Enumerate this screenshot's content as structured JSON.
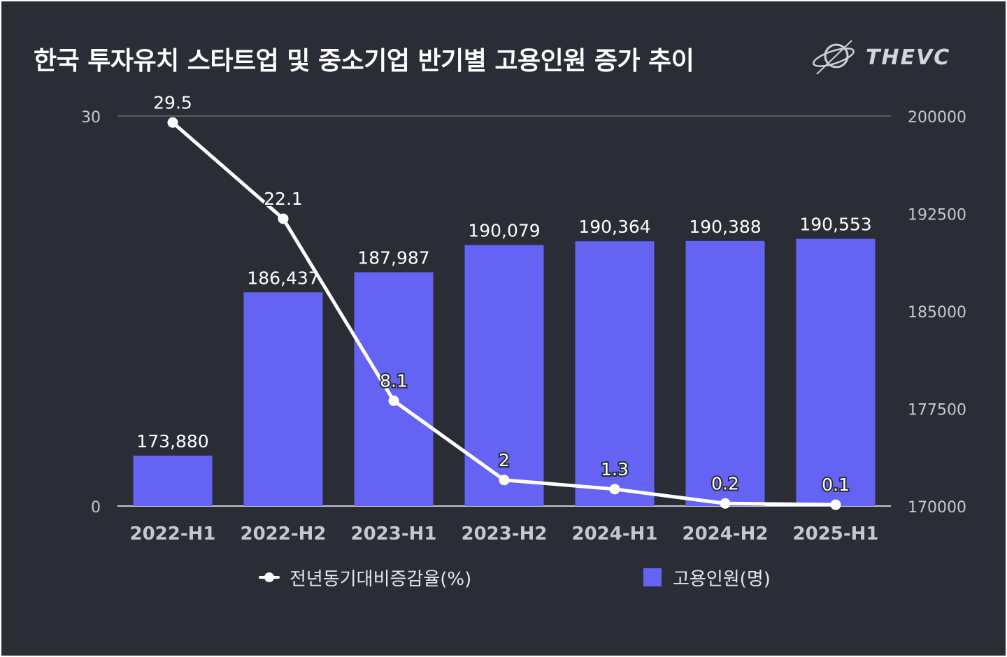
{
  "title": "한국 투자유치 스타트업 및 중소기업 반기별 고용인원 증가 추이",
  "logo": {
    "text": "THEVC",
    "icon": "orbit-logo-icon"
  },
  "colors": {
    "background": "#2a2d35",
    "bar": "#6563f4",
    "line": "#ffffff",
    "text": "#ffffff",
    "axis_text": "#c7c8cf",
    "grid": "#8a8c94"
  },
  "chart_data": {
    "type": "bar+line",
    "categories": [
      "2022-H1",
      "2022-H2",
      "2023-H1",
      "2023-H2",
      "2024-H1",
      "2024-H2",
      "2025-H1"
    ],
    "series": [
      {
        "name": "고용인원(명)",
        "type": "bar",
        "axis": "right",
        "values": [
          173880,
          186437,
          187987,
          190079,
          190364,
          190388,
          190553
        ],
        "labels": [
          "173,880",
          "186,437",
          "187,987",
          "190,079",
          "190,364",
          "190,388",
          "190,553"
        ]
      },
      {
        "name": "전년동기대비증감율(%)",
        "type": "line",
        "axis": "left",
        "values": [
          29.5,
          22.1,
          8.1,
          2,
          1.3,
          0.2,
          0.1
        ],
        "labels": [
          "29.5",
          "22.1",
          "8.1",
          "2",
          "1.3",
          "0.2",
          "0.1"
        ]
      }
    ],
    "left_axis": {
      "min": 0,
      "max": 30,
      "ticks": [
        "0",
        "30"
      ]
    },
    "right_axis": {
      "min": 170000,
      "max": 200000,
      "ticks": [
        "170000",
        "177500",
        "185000",
        "192500",
        "200000"
      ]
    },
    "grid": "top-line-only",
    "legend_position": "bottom"
  },
  "legend": {
    "line_label": "전년동기대비증감율(%)",
    "bar_label": "고용인원(명)"
  }
}
